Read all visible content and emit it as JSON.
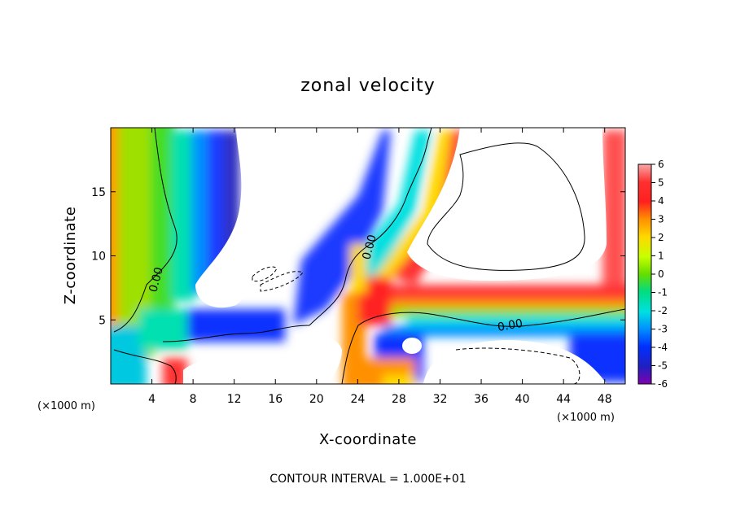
{
  "chart_data": {
    "type": "heatmap",
    "title": "zonal velocity",
    "xlabel": "X-coordinate",
    "ylabel": "Z-coordinate",
    "x_unit_label": "(×1000 m)",
    "x_unit_label_right": "(×1000 m)",
    "x_ticks": [
      4,
      8,
      12,
      16,
      20,
      24,
      28,
      32,
      36,
      40,
      44,
      48
    ],
    "y_ticks": [
      5,
      10,
      15
    ],
    "xlim": [
      0,
      50
    ],
    "ylim": [
      0,
      20
    ],
    "colorbar": {
      "ticks": [
        "6",
        "5",
        "4",
        "3",
        "2",
        "1",
        "0",
        "-1",
        "-2",
        "-3",
        "-4",
        "-5",
        "-6"
      ],
      "range": [
        -6,
        6
      ],
      "colors": [
        "#f7a8a8",
        "#ff3030",
        "#ff2020",
        "#ff9000",
        "#ffd800",
        "#c8ff00",
        "#66dd00",
        "#00dd80",
        "#00e0e0",
        "#0090ff",
        "#0030ff",
        "#2020c0",
        "#8000b0"
      ]
    },
    "contour_label": "0.00",
    "footer": "CONTOUR INTERVAL = 1.000E+01"
  }
}
